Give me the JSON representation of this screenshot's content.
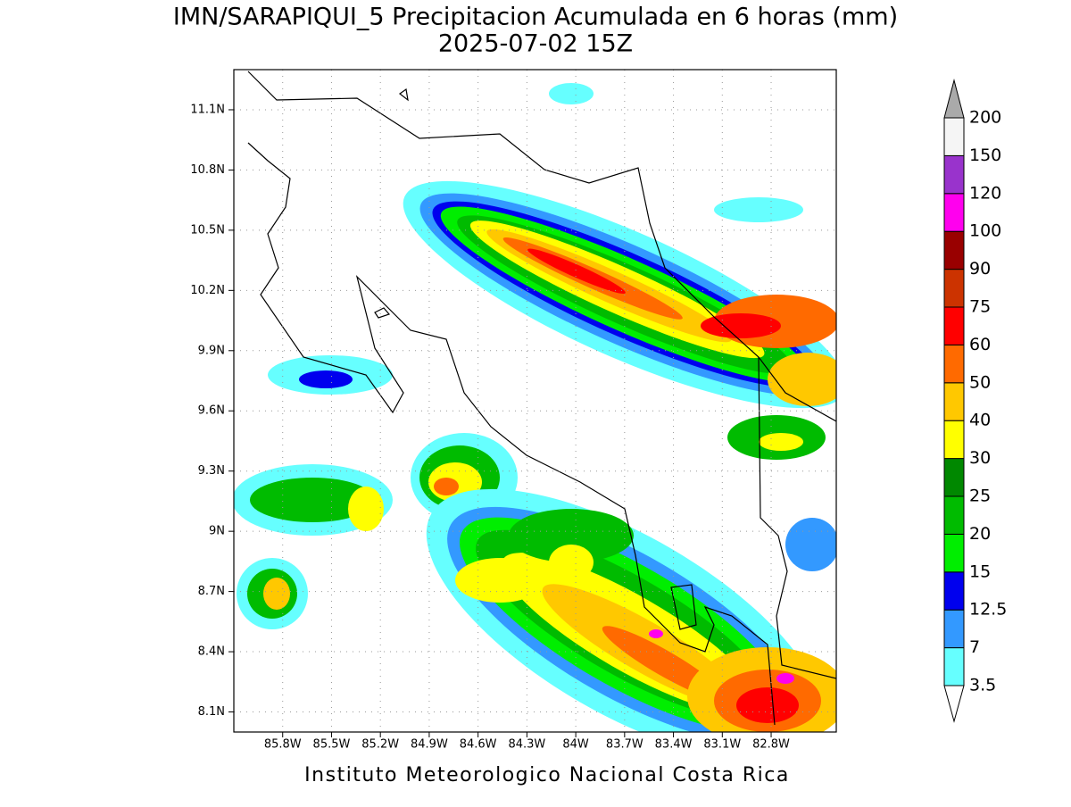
{
  "title": "IMN/SARAPIQUI_5 Precipitacion Acumulada en 6 horas (mm)",
  "subtitle": "2025-07-02 15Z",
  "footer": "Instituto Meteorologico Nacional Costa Rica",
  "map": {
    "lon_range": [
      -86.1,
      -82.4
    ],
    "lat_range": [
      8.0,
      11.3
    ],
    "grid": true,
    "lon_ticks": [
      {
        "value": -85.8,
        "label": "85.8W"
      },
      {
        "value": -85.5,
        "label": "85.5W"
      },
      {
        "value": -85.2,
        "label": "85.2W"
      },
      {
        "value": -84.9,
        "label": "84.9W"
      },
      {
        "value": -84.6,
        "label": "84.6W"
      },
      {
        "value": -84.3,
        "label": "84.3W"
      },
      {
        "value": -84.0,
        "label": "84W"
      },
      {
        "value": -83.7,
        "label": "83.7W"
      },
      {
        "value": -83.4,
        "label": "83.4W"
      },
      {
        "value": -83.1,
        "label": "83.1W"
      },
      {
        "value": -82.8,
        "label": "82.8W"
      }
    ],
    "lat_ticks": [
      {
        "value": 11.1,
        "label": "11.1N"
      },
      {
        "value": 10.8,
        "label": "10.8N"
      },
      {
        "value": 10.5,
        "label": "10.5N"
      },
      {
        "value": 10.2,
        "label": "10.2N"
      },
      {
        "value": 9.9,
        "label": "9.9N"
      },
      {
        "value": 9.6,
        "label": "9.6N"
      },
      {
        "value": 9.3,
        "label": "9.3N"
      },
      {
        "value": 9.0,
        "label": "9N"
      },
      {
        "value": 8.7,
        "label": "8.7N"
      },
      {
        "value": 8.4,
        "label": "8.4N"
      },
      {
        "value": 8.1,
        "label": "8.1N"
      }
    ]
  },
  "colorbar": {
    "levels": [
      3.5,
      7,
      12.5,
      15,
      20,
      25,
      30,
      40,
      50,
      60,
      75,
      90,
      100,
      120,
      150,
      200
    ],
    "colors": [
      "#66ffff",
      "#3399ff",
      "#0000ee",
      "#00ee00",
      "#00bb00",
      "#008800",
      "#ffff00",
      "#ffc800",
      "#ff6a00",
      "#ff0000",
      "#cc3300",
      "#990000",
      "#ff00ee",
      "#9933cc",
      "#f5f5f5"
    ],
    "under_color": "#ffffff",
    "over_color": "#aaaaaa"
  }
}
